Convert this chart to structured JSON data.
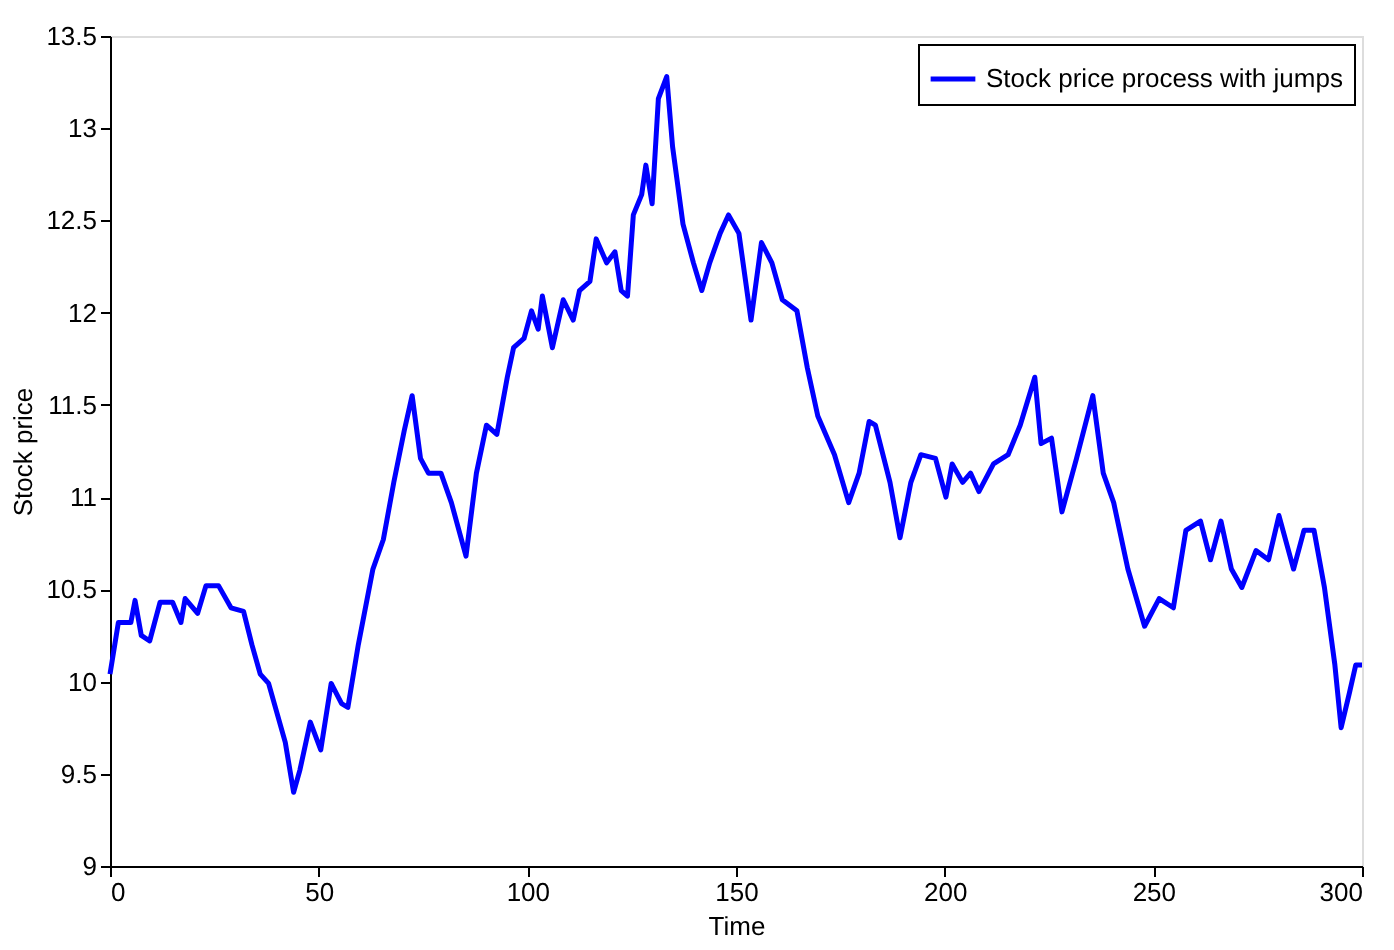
{
  "chart_data": {
    "type": "line",
    "xlabel": "Time",
    "ylabel": "Stock price",
    "x": [
      0,
      2,
      5,
      6,
      7.5,
      9.5,
      12,
      15,
      17,
      18,
      21,
      23,
      26,
      29,
      32,
      34,
      36,
      38,
      40,
      42,
      44,
      45.5,
      48,
      50.5,
      53,
      55.5,
      57,
      59.5,
      63,
      65.5,
      68,
      70.5,
      72.4,
      74.4,
      76.3,
      79.3,
      81.8,
      85.3,
      87.8,
      90.2,
      92.7,
      95.2,
      96.7,
      99.2,
      101,
      102.6,
      103.6,
      106,
      108.6,
      111,
      112.5,
      115,
      116.5,
      119,
      121,
      122.5,
      124,
      125.4,
      127.4,
      128.4,
      129.9,
      131.4,
      133.4,
      134.8,
      137.3,
      139.8,
      141.8,
      143.7,
      146.2,
      148.2,
      150.7,
      153.6,
      156.1,
      158.6,
      161.1,
      164.6,
      167.1,
      169.6,
      173.6,
      177,
      179.5,
      181.9,
      183.4,
      186.9,
      189.3,
      191.9,
      194.3,
      197.8,
      200.3,
      201.8,
      204.3,
      206.2,
      208.2,
      211.7,
      215.2,
      218.1,
      221.6,
      223.1,
      225.6,
      228.1,
      231.6,
      235.5,
      238,
      240.5,
      243.9,
      247.9,
      251.4,
      254.8,
      257.8,
      261.3,
      263.7,
      266.2,
      268.7,
      271.2,
      274.6,
      277.6,
      280.1,
      283.6,
      286.1,
      288.5,
      291,
      293.5,
      295,
      297,
      298.5,
      300
    ],
    "series": [
      {
        "name": "Stock price process with jumps",
        "color": "#0000ff",
        "values": [
          10.04,
          10.32,
          10.32,
          10.44,
          10.25,
          10.22,
          10.43,
          10.43,
          10.32,
          10.45,
          10.37,
          10.52,
          10.52,
          10.4,
          10.38,
          10.2,
          10.04,
          9.99,
          9.83,
          9.67,
          9.4,
          9.52,
          9.78,
          9.63,
          9.99,
          9.88,
          9.86,
          10.2,
          10.61,
          10.77,
          11.08,
          11.36,
          11.55,
          11.21,
          11.13,
          11.13,
          10.97,
          10.68,
          11.13,
          11.39,
          11.34,
          11.65,
          11.81,
          11.86,
          12.01,
          11.91,
          12.09,
          11.81,
          12.07,
          11.96,
          12.12,
          12.17,
          12.4,
          12.27,
          12.33,
          12.12,
          12.09,
          12.53,
          12.64,
          12.8,
          12.59,
          13.16,
          13.28,
          12.9,
          12.48,
          12.27,
          12.12,
          12.27,
          12.43,
          12.53,
          12.43,
          11.96,
          12.38,
          12.27,
          12.07,
          12.01,
          11.7,
          11.44,
          11.23,
          10.97,
          11.13,
          11.41,
          11.39,
          11.08,
          10.78,
          11.08,
          11.23,
          11.21,
          11.0,
          11.18,
          11.08,
          11.13,
          11.03,
          11.18,
          11.23,
          11.39,
          11.65,
          11.29,
          11.32,
          10.92,
          11.21,
          11.55,
          11.13,
          10.97,
          10.61,
          10.3,
          10.45,
          10.4,
          10.82,
          10.87,
          10.66,
          10.87,
          10.61,
          10.51,
          10.71,
          10.66,
          10.9,
          10.61,
          10.82,
          10.82,
          10.51,
          10.09,
          9.75,
          9.94,
          10.09,
          10.09
        ]
      }
    ],
    "xlim": [
      0,
      300
    ],
    "xticks": [
      0,
      50,
      100,
      150,
      200,
      250,
      300
    ],
    "ylim": [
      9,
      13.5
    ],
    "yticks": [
      9,
      9.5,
      10,
      10.5,
      11,
      11.5,
      12,
      12.5,
      13,
      13.5
    ],
    "grid": false,
    "legend": "top right",
    "marker": "none",
    "line_style": "solid"
  }
}
